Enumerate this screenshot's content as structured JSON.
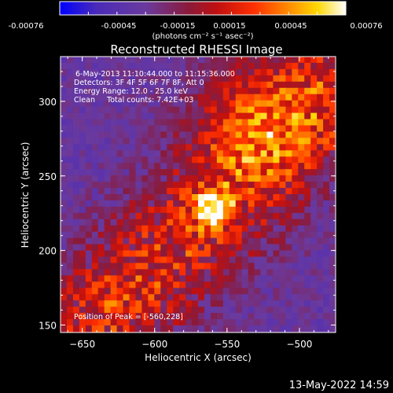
{
  "colorbar": {
    "ticks": [
      "-0.00076",
      "-0.00045",
      "-0.00015",
      "0.00015",
      "0.00045",
      "0.00076"
    ],
    "unit_html": "(photons cm⁻² s⁻¹ asec⁻²)",
    "range": [
      -0.00076,
      0.00076
    ],
    "colormap": [
      "#0000ff",
      "#4a2bb8",
      "#6a3a9e",
      "#8a1a3a",
      "#c01010",
      "#ff3000",
      "#ff8c00",
      "#ffd700",
      "#ffffff"
    ]
  },
  "chart_data": {
    "type": "heatmap",
    "title": "Reconstructed RHESSI Image",
    "xlabel": "Heliocentric X (arcsec)",
    "ylabel": "Heliocentric Y (arcsec)",
    "xlim": [
      -665,
      -475
    ],
    "ylim": [
      145,
      330
    ],
    "xticks": [
      -650,
      -600,
      -550,
      -500
    ],
    "yticks": [
      150,
      200,
      250,
      300
    ],
    "peak": {
      "x": -560,
      "y": 228
    },
    "annotations": [
      "6-May-2013 11:10:44.000 to 11:15:36.000",
      "Detectors: 3F 4F 5F 6F 7F 8F, Att 0",
      "Energy Range: 12.0 - 25.0 keV",
      "Clean     Total counts: 7.42E+03"
    ],
    "peak_label": "Position of Peak = [-560,228]"
  },
  "footer": {
    "timestamp": "13-May-2022 14:59"
  }
}
